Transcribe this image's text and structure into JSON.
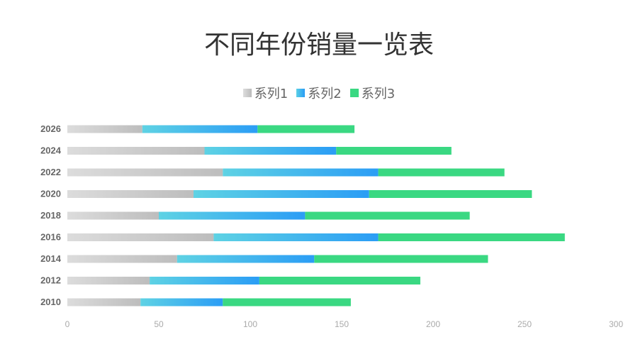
{
  "chart_data": {
    "type": "bar",
    "orientation": "horizontal",
    "stacked": true,
    "title": "不同年份销量一览表",
    "categories": [
      "2010",
      "2012",
      "2014",
      "2016",
      "2018",
      "2020",
      "2022",
      "2024",
      "2026"
    ],
    "series": [
      {
        "name": "系列1",
        "color": "#cccccc",
        "values": [
          40,
          45,
          60,
          80,
          50,
          69,
          85,
          75,
          41
        ]
      },
      {
        "name": "系列2",
        "color": "#35aef0",
        "values": [
          45,
          60,
          75,
          90,
          80,
          96,
          85,
          72,
          63
        ]
      },
      {
        "name": "系列3",
        "color": "#3ad882",
        "values": [
          70,
          88,
          95,
          102,
          90,
          89,
          69,
          63,
          53
        ]
      }
    ],
    "xlim": [
      0,
      300
    ],
    "xticks": [
      "0",
      "50",
      "100",
      "150",
      "200",
      "250",
      "300"
    ],
    "legend": "top",
    "grid": false
  }
}
